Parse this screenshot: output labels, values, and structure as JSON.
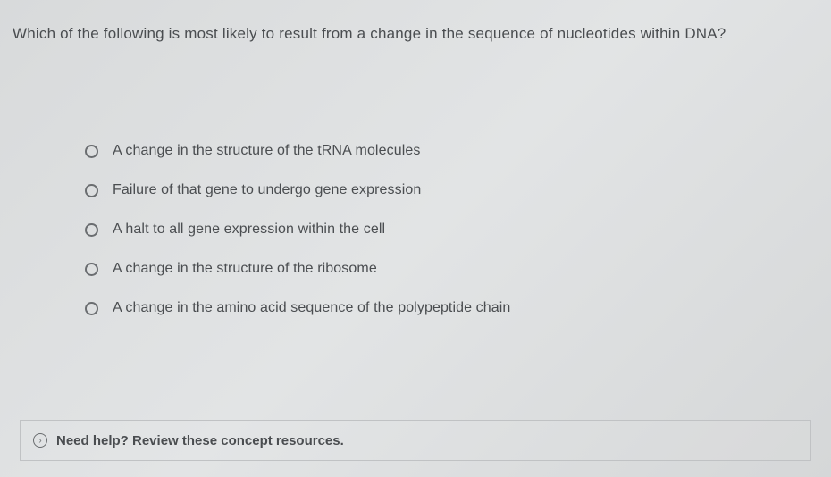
{
  "question": "Which of the following is most likely to result from a change in the sequence of nucleotides within DNA?",
  "options": [
    "A change in the structure of the tRNA molecules",
    "Failure of that gene to undergo gene expression",
    "A halt to all gene expression within the cell",
    "A change in the structure of the ribosome",
    "A change in the amino acid sequence of the polypeptide chain"
  ],
  "help": {
    "text": "Need help? Review these concept resources.",
    "icon": "›"
  }
}
